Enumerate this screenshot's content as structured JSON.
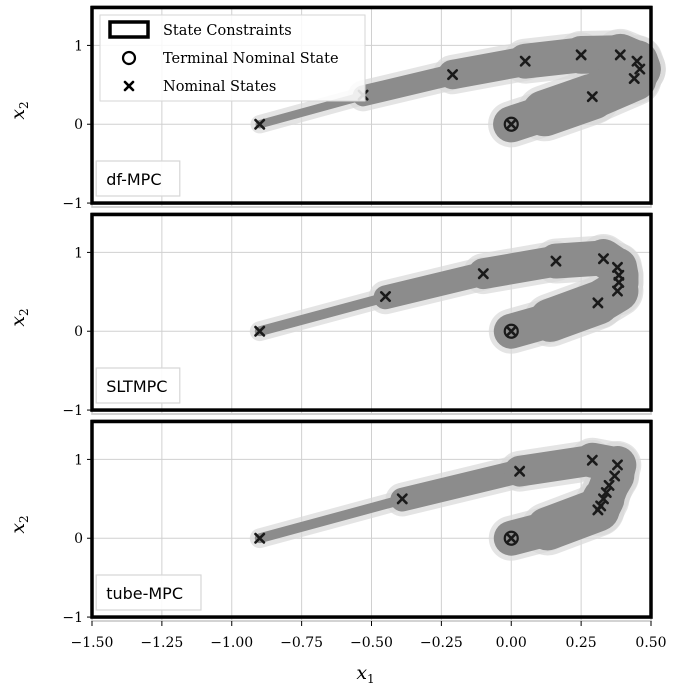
{
  "chart_data": [
    {
      "type": "scatter",
      "method": "df-MPC",
      "xlabel": "",
      "ylabel": "x2",
      "xlim": [
        -1.5,
        0.5
      ],
      "ylim": [
        -1.05,
        1.5
      ],
      "yticks": [
        -1,
        0,
        1
      ],
      "grid": true,
      "state_constraints": {
        "x": [
          -1.5,
          0.5
        ],
        "y": [
          -1,
          1.5
        ]
      },
      "start": [
        -0.9,
        0.0
      ],
      "terminal_nominal_state": [
        0.0,
        0.0
      ],
      "nominal_states": [
        [
          -0.9,
          0.0
        ],
        [
          -0.53,
          0.37
        ],
        [
          -0.21,
          0.63
        ],
        [
          0.05,
          0.8
        ],
        [
          0.25,
          0.88
        ],
        [
          0.39,
          0.88
        ],
        [
          0.45,
          0.8
        ],
        [
          0.46,
          0.7
        ],
        [
          0.44,
          0.58
        ],
        [
          0.29,
          0.35
        ],
        [
          0.0,
          0.0
        ]
      ],
      "tube_centerline": [
        [
          -0.9,
          0.0
        ],
        [
          -0.53,
          0.36
        ],
        [
          -0.21,
          0.63
        ],
        [
          0.05,
          0.8
        ],
        [
          0.25,
          0.88
        ],
        [
          0.39,
          0.89
        ],
        [
          0.45,
          0.8
        ],
        [
          0.46,
          0.7
        ],
        [
          0.44,
          0.58
        ],
        [
          0.29,
          0.35
        ],
        [
          0.12,
          0.14
        ],
        [
          0.0,
          0.0
        ]
      ],
      "tube_width": [
        0.0,
        0.06,
        0.09,
        0.12,
        0.13,
        0.14,
        0.15,
        0.15,
        0.15,
        0.17,
        0.16,
        0.1
      ]
    },
    {
      "type": "scatter",
      "method": "SLTMPC",
      "xlabel": "",
      "ylabel": "x2",
      "xlim": [
        -1.5,
        0.5
      ],
      "ylim": [
        -1.05,
        1.5
      ],
      "yticks": [
        -1,
        0,
        1
      ],
      "grid": true,
      "state_constraints": {
        "x": [
          -1.5,
          0.5
        ],
        "y": [
          -1,
          1.5
        ]
      },
      "start": [
        -0.9,
        0.0
      ],
      "terminal_nominal_state": [
        0.0,
        0.0
      ],
      "nominal_states": [
        [
          -0.9,
          0.0
        ],
        [
          -0.45,
          0.44
        ],
        [
          -0.1,
          0.73
        ],
        [
          0.16,
          0.89
        ],
        [
          0.33,
          0.92
        ],
        [
          0.38,
          0.81
        ],
        [
          0.385,
          0.71
        ],
        [
          0.385,
          0.62
        ],
        [
          0.38,
          0.51
        ],
        [
          0.31,
          0.36
        ],
        [
          0.0,
          0.0
        ]
      ],
      "tube_centerline": [
        [
          -0.9,
          0.0
        ],
        [
          -0.45,
          0.43
        ],
        [
          -0.1,
          0.73
        ],
        [
          0.16,
          0.89
        ],
        [
          0.33,
          0.93
        ],
        [
          0.38,
          0.81
        ],
        [
          0.385,
          0.71
        ],
        [
          0.385,
          0.62
        ],
        [
          0.38,
          0.51
        ],
        [
          0.31,
          0.36
        ],
        [
          0.14,
          0.14
        ],
        [
          0.0,
          0.0
        ]
      ],
      "tube_width": [
        0.0,
        0.07,
        0.1,
        0.12,
        0.13,
        0.14,
        0.14,
        0.14,
        0.14,
        0.16,
        0.15,
        0.1
      ]
    },
    {
      "type": "scatter",
      "method": "tube-MPC",
      "xlabel": "x1",
      "ylabel": "x2",
      "xlim": [
        -1.5,
        0.5
      ],
      "ylim": [
        -1.05,
        1.5
      ],
      "xticks": [
        -1.5,
        -1.25,
        -1.0,
        -0.75,
        -0.5,
        -0.25,
        0.0,
        0.25,
        0.5
      ],
      "yticks": [
        -1,
        0,
        1
      ],
      "grid": true,
      "state_constraints": {
        "x": [
          -1.5,
          0.5
        ],
        "y": [
          -1,
          1.5
        ]
      },
      "start": [
        -0.9,
        0.0
      ],
      "terminal_nominal_state": [
        0.0,
        0.0
      ],
      "nominal_states": [
        [
          -0.9,
          0.0
        ],
        [
          -0.39,
          0.5
        ],
        [
          0.03,
          0.85
        ],
        [
          0.29,
          0.99
        ],
        [
          0.38,
          0.93
        ],
        [
          0.37,
          0.79
        ],
        [
          0.35,
          0.67
        ],
        [
          0.34,
          0.58
        ],
        [
          0.33,
          0.5
        ],
        [
          0.32,
          0.41
        ],
        [
          0.31,
          0.36
        ],
        [
          0.0,
          0.0
        ]
      ],
      "tube_centerline": [
        [
          -0.9,
          0.0
        ],
        [
          -0.39,
          0.49
        ],
        [
          0.03,
          0.85
        ],
        [
          0.29,
          0.99
        ],
        [
          0.38,
          0.93
        ],
        [
          0.37,
          0.79
        ],
        [
          0.35,
          0.67
        ],
        [
          0.34,
          0.58
        ],
        [
          0.33,
          0.5
        ],
        [
          0.31,
          0.36
        ],
        [
          0.13,
          0.12
        ],
        [
          0.0,
          0.0
        ]
      ],
      "tube_width": [
        0.0,
        0.07,
        0.1,
        0.12,
        0.13,
        0.14,
        0.14,
        0.14,
        0.14,
        0.16,
        0.15,
        0.1
      ]
    }
  ],
  "legend": {
    "placement": "upper-left of top panel",
    "entries": [
      {
        "marker": "rect",
        "label": "State Constraints"
      },
      {
        "marker": "circle",
        "label": "Terminal Nominal State"
      },
      {
        "marker": "x",
        "label": "Nominal States"
      }
    ]
  },
  "colors": {
    "tube": "#8c8c8c",
    "tube_halo": "#d9d9d9",
    "grid": "#d0d0d0",
    "frame": "#c8c8c8",
    "constraint": "#000000",
    "marker": "#1a1a1a"
  }
}
